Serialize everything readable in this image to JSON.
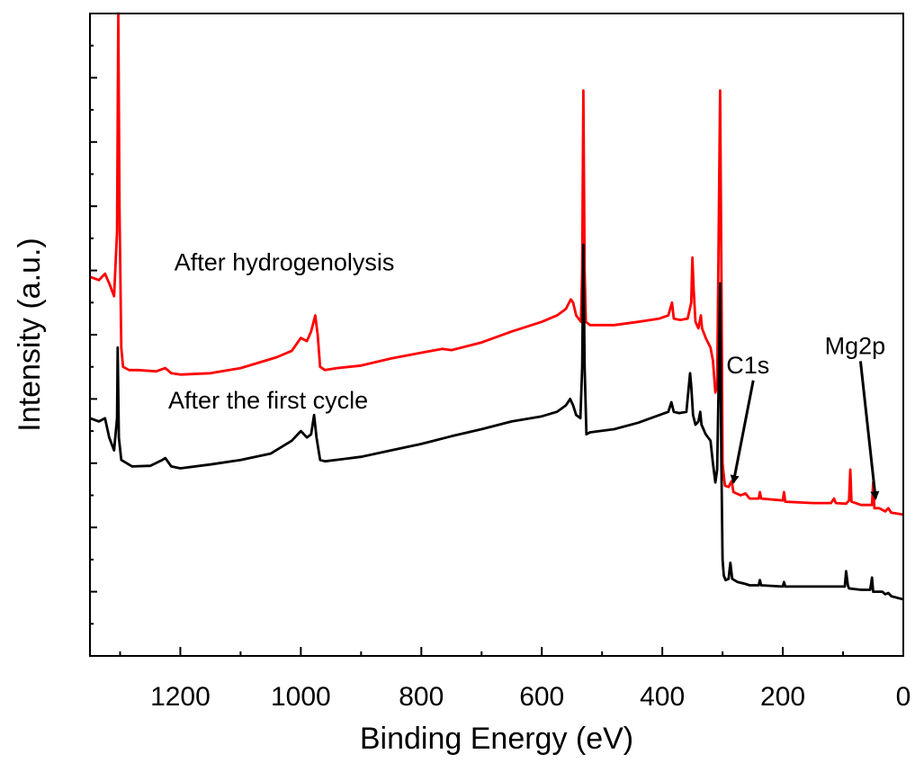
{
  "chart_data": {
    "type": "line",
    "title": "",
    "xlabel": "Binding Energy (eV)",
    "ylabel": "Intensity (a.u.)",
    "xlim": [
      1350,
      0
    ],
    "x_reversed": true,
    "ylim": [
      0,
      100
    ],
    "y_tick_labels_shown": false,
    "grid": false,
    "legend": "none",
    "x_ticks": [
      1200,
      1000,
      800,
      600,
      400,
      200,
      0
    ],
    "x_tick_labels": [
      "1200",
      "1000",
      "800",
      "600",
      "400",
      "200",
      "0"
    ],
    "y_ticks": [
      0,
      10,
      20,
      30,
      40,
      50,
      60,
      70,
      80,
      90,
      100
    ],
    "series": [
      {
        "label": "After hydrogenolysis",
        "color": "#ff0000",
        "points": [
          [
            1350,
            59
          ],
          [
            1335,
            58.5
          ],
          [
            1325,
            59.5
          ],
          [
            1318,
            58
          ],
          [
            1310,
            56
          ],
          [
            1305,
            66
          ],
          [
            1303,
            100
          ],
          [
            1301,
            70
          ],
          [
            1298,
            48
          ],
          [
            1295,
            45
          ],
          [
            1285,
            44.5
          ],
          [
            1270,
            44.5
          ],
          [
            1240,
            44.3
          ],
          [
            1225,
            44.8
          ],
          [
            1215,
            44
          ],
          [
            1200,
            43.8
          ],
          [
            1150,
            44
          ],
          [
            1100,
            44.8
          ],
          [
            1075,
            45.5
          ],
          [
            1040,
            46.5
          ],
          [
            1015,
            47.5
          ],
          [
            1000,
            49.5
          ],
          [
            990,
            49
          ],
          [
            983,
            50.5
          ],
          [
            976,
            53
          ],
          [
            972,
            50
          ],
          [
            968,
            45
          ],
          [
            960,
            44.5
          ],
          [
            940,
            44.8
          ],
          [
            900,
            45.2
          ],
          [
            850,
            46.3
          ],
          [
            800,
            47.2
          ],
          [
            765,
            47.8
          ],
          [
            750,
            47.6
          ],
          [
            700,
            48.8
          ],
          [
            650,
            50.5
          ],
          [
            600,
            52
          ],
          [
            575,
            53
          ],
          [
            560,
            54
          ],
          [
            552,
            55.5
          ],
          [
            548,
            55
          ],
          [
            543,
            53
          ],
          [
            535,
            52
          ],
          [
            533,
            60
          ],
          [
            531,
            88
          ],
          [
            529,
            60
          ],
          [
            527,
            52
          ],
          [
            520,
            51.5
          ],
          [
            480,
            51.5
          ],
          [
            440,
            52
          ],
          [
            405,
            52.5
          ],
          [
            390,
            53
          ],
          [
            384,
            55
          ],
          [
            381,
            52.5
          ],
          [
            370,
            52.3
          ],
          [
            358,
            52.5
          ],
          [
            352,
            55
          ],
          [
            350,
            62
          ],
          [
            348,
            57
          ],
          [
            345,
            52
          ],
          [
            340,
            51
          ],
          [
            336,
            53
          ],
          [
            334,
            51
          ],
          [
            328,
            49.5
          ],
          [
            320,
            48
          ],
          [
            316,
            46
          ],
          [
            312,
            41
          ],
          [
            309,
            42
          ],
          [
            306,
            70
          ],
          [
            304,
            88
          ],
          [
            302,
            60
          ],
          [
            300,
            30
          ],
          [
            298,
            28
          ],
          [
            296,
            26.5
          ],
          [
            290,
            26.3
          ],
          [
            285,
            27.2
          ],
          [
            282,
            25.5
          ],
          [
            270,
            25
          ],
          [
            262,
            25.3
          ],
          [
            255,
            24.5
          ],
          [
            240,
            24.5
          ],
          [
            238,
            25.5
          ],
          [
            236,
            24.5
          ],
          [
            200,
            24.2
          ],
          [
            198,
            25.5
          ],
          [
            196,
            24
          ],
          [
            150,
            23.8
          ],
          [
            120,
            23.8
          ],
          [
            115,
            24.5
          ],
          [
            112,
            23.8
          ],
          [
            95,
            23.7
          ],
          [
            90,
            24.2
          ],
          [
            88,
            29
          ],
          [
            86,
            24
          ],
          [
            70,
            23.5
          ],
          [
            65,
            23.5
          ],
          [
            52,
            23.5
          ],
          [
            50,
            27
          ],
          [
            48,
            23
          ],
          [
            40,
            23
          ],
          [
            30,
            22.5
          ],
          [
            25,
            23
          ],
          [
            20,
            22.3
          ],
          [
            0,
            22
          ]
        ]
      },
      {
        "label": "After the first cycle",
        "color": "#000000",
        "points": [
          [
            1350,
            37
          ],
          [
            1335,
            36.5
          ],
          [
            1325,
            37
          ],
          [
            1318,
            34
          ],
          [
            1310,
            32
          ],
          [
            1305,
            37
          ],
          [
            1304,
            48
          ],
          [
            1302,
            34
          ],
          [
            1298,
            30.5
          ],
          [
            1280,
            29.5
          ],
          [
            1250,
            29.6
          ],
          [
            1230,
            30.5
          ],
          [
            1225,
            30.8
          ],
          [
            1215,
            29.5
          ],
          [
            1200,
            29.2
          ],
          [
            1150,
            29.8
          ],
          [
            1100,
            30.5
          ],
          [
            1050,
            31.5
          ],
          [
            1015,
            33.5
          ],
          [
            1000,
            35
          ],
          [
            990,
            34
          ],
          [
            983,
            34.5
          ],
          [
            978,
            37.5
          ],
          [
            974,
            34
          ],
          [
            968,
            30.5
          ],
          [
            960,
            30.3
          ],
          [
            900,
            31
          ],
          [
            850,
            32
          ],
          [
            800,
            33
          ],
          [
            750,
            34.2
          ],
          [
            700,
            35.3
          ],
          [
            650,
            36.5
          ],
          [
            600,
            37.3
          ],
          [
            575,
            38
          ],
          [
            560,
            39
          ],
          [
            553,
            40
          ],
          [
            548,
            39
          ],
          [
            543,
            37.5
          ],
          [
            536,
            37
          ],
          [
            533,
            45
          ],
          [
            531,
            64
          ],
          [
            529,
            45
          ],
          [
            526,
            34.5
          ],
          [
            520,
            34.8
          ],
          [
            480,
            35.3
          ],
          [
            440,
            36.3
          ],
          [
            405,
            37.5
          ],
          [
            390,
            38
          ],
          [
            385,
            39.5
          ],
          [
            381,
            38
          ],
          [
            372,
            37.8
          ],
          [
            360,
            38
          ],
          [
            354,
            44
          ],
          [
            352,
            42
          ],
          [
            349,
            37.5
          ],
          [
            345,
            36
          ],
          [
            340,
            36.5
          ],
          [
            337,
            38
          ],
          [
            335,
            36
          ],
          [
            328,
            34.5
          ],
          [
            320,
            33.5
          ],
          [
            316,
            30
          ],
          [
            312,
            27
          ],
          [
            309,
            29
          ],
          [
            306,
            45
          ],
          [
            304,
            58
          ],
          [
            302,
            30
          ],
          [
            300,
            15
          ],
          [
            298,
            12.5
          ],
          [
            295,
            11.8
          ],
          [
            290,
            12
          ],
          [
            287,
            14.5
          ],
          [
            284,
            12
          ],
          [
            275,
            11.5
          ],
          [
            262,
            11.2
          ],
          [
            255,
            11
          ],
          [
            240,
            11
          ],
          [
            238,
            11.8
          ],
          [
            236,
            11
          ],
          [
            200,
            10.8
          ],
          [
            198,
            11.5
          ],
          [
            196,
            10.8
          ],
          [
            150,
            10.8
          ],
          [
            100,
            10.8
          ],
          [
            97,
            10.8
          ],
          [
            95,
            13.2
          ],
          [
            92,
            11
          ],
          [
            90,
            10.5
          ],
          [
            70,
            10.3
          ],
          [
            55,
            10.3
          ],
          [
            52,
            12.2
          ],
          [
            50,
            10
          ],
          [
            35,
            10
          ],
          [
            30,
            9.6
          ],
          [
            25,
            9.8
          ],
          [
            20,
            9.3
          ],
          [
            0,
            8.8
          ]
        ]
      }
    ],
    "annotations": [
      {
        "text": "After hydrogenolysis",
        "x": 1210,
        "y": 60
      },
      {
        "text": "After the first cycle",
        "x": 1220,
        "y": 38.5
      },
      {
        "text": "C1s",
        "x": 258,
        "y": 44,
        "arrow_to": [
          282,
          27
        ]
      },
      {
        "text": "Mg2p",
        "x": 80,
        "y": 47,
        "arrow_to": [
          46,
          24.5
        ]
      }
    ]
  }
}
